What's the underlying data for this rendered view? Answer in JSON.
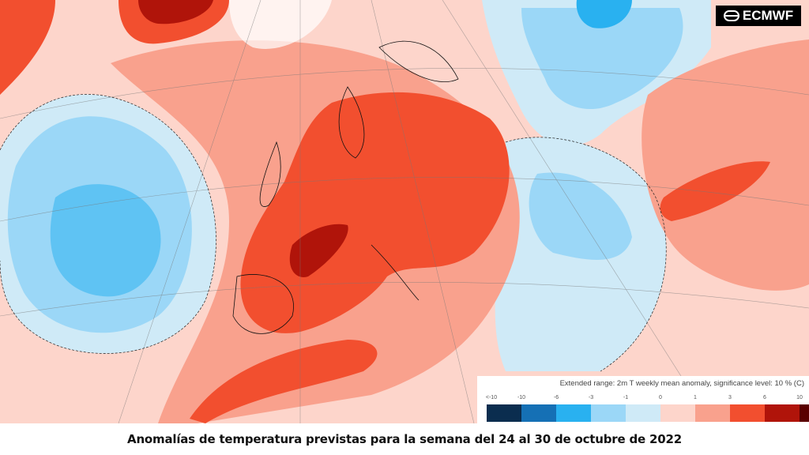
{
  "logo": {
    "text": "ECMWF"
  },
  "legend": {
    "title": "Extended range: 2m T weekly mean anomaly, significance level: 10 % (C)",
    "ticks": [
      "<-10",
      "-10",
      "-6",
      "-3",
      "-1",
      "0",
      "1",
      "3",
      "6",
      "10"
    ],
    "colors": [
      "#0b2d4f",
      "#1570b5",
      "#29b1f0",
      "#9bd7f7",
      "#cfeaf7",
      "#fdd5cb",
      "#f9a18d",
      "#f24f2f",
      "#b0140a",
      "#5a0000"
    ]
  },
  "caption": "Anomalías de temperatura previstas para la semana del 24 al 30 de octubre de 2022"
}
